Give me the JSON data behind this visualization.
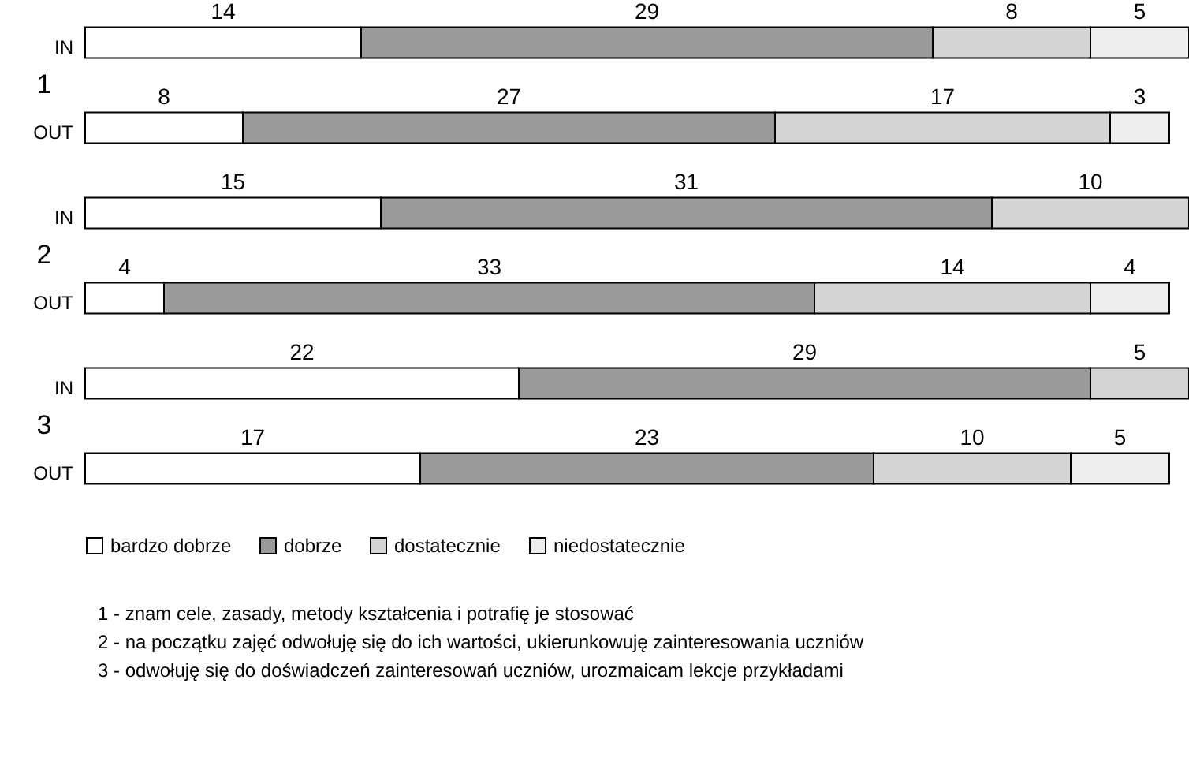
{
  "chart_data": {
    "type": "bar",
    "orientation": "horizontal",
    "stacked": true,
    "data_labels": true,
    "legend": "bottom",
    "grid": false,
    "categories": [
      "IN",
      "OUT",
      "IN",
      "OUT",
      "IN",
      "OUT"
    ],
    "xlim": [
      0,
      56
    ],
    "series": [
      {
        "name": "bardzo dobrze",
        "color": "#ffffff",
        "values": [
          14,
          8,
          15,
          4,
          22,
          17
        ]
      },
      {
        "name": "dobrze",
        "color": "#9a9a9a",
        "values": [
          29,
          27,
          31,
          33,
          29,
          23
        ]
      },
      {
        "name": "dostatecznie",
        "color": "#d4d4d4",
        "values": [
          8,
          17,
          10,
          14,
          5,
          10
        ]
      },
      {
        "name": "niedostatecznie",
        "color": "#eeeeee",
        "values": [
          5,
          3,
          null,
          4,
          null,
          5
        ]
      }
    ],
    "annotations": [
      "1",
      "2",
      "3",
      "1 - znam cele, zasady, metody kształcenia i potrafię je stosować",
      "2 - na początku zajęć odwołuję się do ich wartości, ukierunkowuję zainteresowania uczniów",
      "3 - odwołuję się do doświadczeń  zainteresowań uczniów, urozmaicam lekcje przykładami"
    ]
  }
}
